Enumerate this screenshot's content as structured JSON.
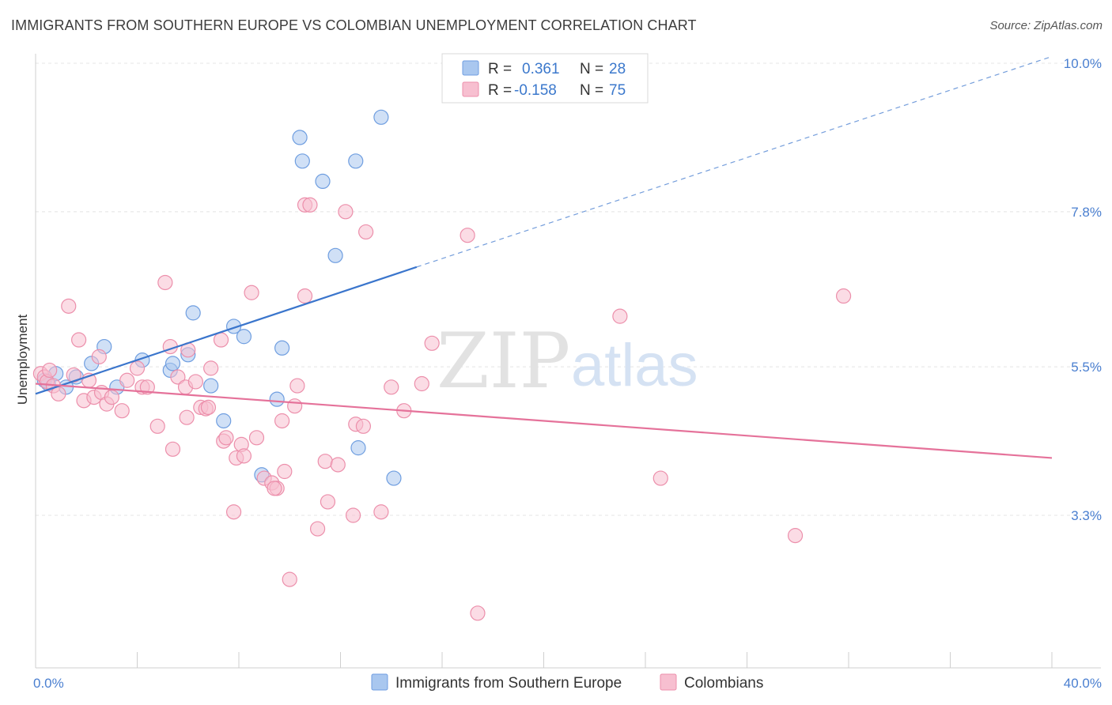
{
  "header": {
    "title": "IMMIGRANTS FROM SOUTHERN EUROPE VS COLOMBIAN UNEMPLOYMENT CORRELATION CHART",
    "source": "Source: ZipAtlas.com"
  },
  "watermark": {
    "zip": "ZIP",
    "atlas": "atlas"
  },
  "legend": {
    "rows": [
      {
        "r_label": "R =",
        "r_value": "0.361",
        "n_label": "N =",
        "n_value": "28",
        "color": "#a9c7ef",
        "stroke": "#6f9ee0"
      },
      {
        "r_label": "R =",
        "r_value": "-0.158",
        "n_label": "N =",
        "n_value": "75",
        "color": "#f7bfd0",
        "stroke": "#ec8fab"
      }
    ]
  },
  "bottom_legend": [
    {
      "label": "Immigrants from Southern Europe",
      "color": "#a9c7ef",
      "stroke": "#6f9ee0"
    },
    {
      "label": "Colombians",
      "color": "#f7bfd0",
      "stroke": "#ec8fab"
    }
  ],
  "chart_data": {
    "type": "scatter",
    "title": "IMMIGRANTS FROM SOUTHERN EUROPE VS COLOMBIAN UNEMPLOYMENT CORRELATION CHART",
    "xlabel": "",
    "ylabel": "Unemployment",
    "xlim": [
      0,
      40
    ],
    "ylim": [
      1.2,
      10.5
    ],
    "x_tick_labels": [
      {
        "value": 0,
        "label": "0.0%"
      },
      {
        "value": 40,
        "label": "40.0%"
      }
    ],
    "y_tick_labels": [
      {
        "value": 3.3,
        "label": "3.3%"
      },
      {
        "value": 5.5,
        "label": "5.5%"
      },
      {
        "value": 7.8,
        "label": "7.8%"
      },
      {
        "value": 10.0,
        "label": "10.0%"
      }
    ],
    "grid": true,
    "legend_position": "top-center",
    "series": [
      {
        "name": "Immigrants from Southern Europe",
        "color": "#a9c7ef",
        "stroke": "#6f9ee0",
        "trend_color": "#3a75cc",
        "trend": {
          "x0": 0,
          "y0": 5.1,
          "x1": 15.0,
          "y1": 6.98,
          "dashed_to_x": 40,
          "dashed_to_y": 10.1
        },
        "points": [
          [
            0.35,
            5.3
          ],
          [
            0.5,
            5.25
          ],
          [
            0.8,
            5.4
          ],
          [
            1.2,
            5.2
          ],
          [
            1.6,
            5.35
          ],
          [
            2.2,
            5.55
          ],
          [
            2.7,
            5.8
          ],
          [
            3.2,
            5.2
          ],
          [
            4.2,
            5.6
          ],
          [
            5.3,
            5.45
          ],
          [
            5.4,
            5.55
          ],
          [
            6.0,
            5.68
          ],
          [
            6.2,
            6.3
          ],
          [
            6.9,
            5.22
          ],
          [
            7.4,
            4.7
          ],
          [
            7.8,
            6.1
          ],
          [
            8.2,
            5.95
          ],
          [
            8.9,
            3.9
          ],
          [
            9.5,
            5.02
          ],
          [
            9.7,
            5.78
          ],
          [
            10.4,
            8.9
          ],
          [
            10.5,
            8.55
          ],
          [
            11.3,
            8.25
          ],
          [
            11.8,
            7.15
          ],
          [
            12.6,
            8.55
          ],
          [
            12.7,
            4.3
          ],
          [
            13.6,
            9.2
          ],
          [
            14.1,
            3.85
          ]
        ]
      },
      {
        "name": "Colombians",
        "color": "#f7bfd0",
        "stroke": "#ec8fab",
        "trend_color": "#e5729a",
        "trend": {
          "x0": 0,
          "y0": 5.25,
          "x1": 40,
          "y1": 4.15
        },
        "points": [
          [
            0.2,
            5.4
          ],
          [
            0.35,
            5.35
          ],
          [
            0.45,
            5.28
          ],
          [
            0.55,
            5.45
          ],
          [
            0.7,
            5.22
          ],
          [
            0.9,
            5.1
          ],
          [
            1.3,
            6.4
          ],
          [
            1.5,
            5.38
          ],
          [
            1.7,
            5.9
          ],
          [
            1.9,
            5.0
          ],
          [
            2.1,
            5.3
          ],
          [
            2.3,
            5.05
          ],
          [
            2.5,
            5.65
          ],
          [
            2.6,
            5.12
          ],
          [
            2.8,
            4.95
          ],
          [
            3.0,
            5.05
          ],
          [
            3.4,
            4.85
          ],
          [
            3.6,
            5.3
          ],
          [
            4.0,
            5.48
          ],
          [
            4.2,
            5.2
          ],
          [
            4.4,
            5.2
          ],
          [
            4.8,
            4.62
          ],
          [
            5.1,
            6.75
          ],
          [
            5.3,
            5.8
          ],
          [
            5.4,
            4.28
          ],
          [
            5.6,
            5.35
          ],
          [
            5.9,
            5.2
          ],
          [
            5.95,
            4.75
          ],
          [
            6.0,
            5.75
          ],
          [
            6.3,
            5.28
          ],
          [
            6.5,
            4.9
          ],
          [
            6.7,
            4.88
          ],
          [
            6.9,
            5.48
          ],
          [
            7.3,
            5.9
          ],
          [
            7.4,
            4.4
          ],
          [
            7.5,
            4.45
          ],
          [
            7.8,
            3.35
          ],
          [
            7.9,
            4.15
          ],
          [
            8.1,
            4.35
          ],
          [
            8.2,
            4.18
          ],
          [
            8.5,
            6.6
          ],
          [
            8.7,
            4.45
          ],
          [
            9.0,
            3.85
          ],
          [
            9.3,
            3.78
          ],
          [
            9.5,
            3.7
          ],
          [
            9.7,
            4.7
          ],
          [
            9.8,
            3.95
          ],
          [
            10.0,
            2.35
          ],
          [
            10.2,
            4.92
          ],
          [
            10.3,
            5.22
          ],
          [
            10.6,
            6.55
          ],
          [
            10.6,
            7.9
          ],
          [
            11.1,
            3.1
          ],
          [
            11.4,
            4.1
          ],
          [
            11.5,
            3.5
          ],
          [
            11.9,
            4.05
          ],
          [
            12.2,
            7.8
          ],
          [
            12.5,
            3.3
          ],
          [
            12.6,
            4.65
          ],
          [
            12.9,
            4.62
          ],
          [
            13.0,
            7.5
          ],
          [
            13.6,
            3.35
          ],
          [
            14.0,
            5.2
          ],
          [
            14.5,
            4.85
          ],
          [
            15.2,
            5.25
          ],
          [
            15.6,
            5.85
          ],
          [
            17.0,
            7.45
          ],
          [
            17.4,
            1.85
          ],
          [
            23.0,
            6.25
          ],
          [
            24.6,
            3.85
          ],
          [
            29.9,
            3.0
          ],
          [
            31.8,
            6.55
          ],
          [
            10.8,
            7.9
          ],
          [
            9.4,
            3.7
          ],
          [
            6.8,
            4.9
          ]
        ]
      }
    ]
  }
}
